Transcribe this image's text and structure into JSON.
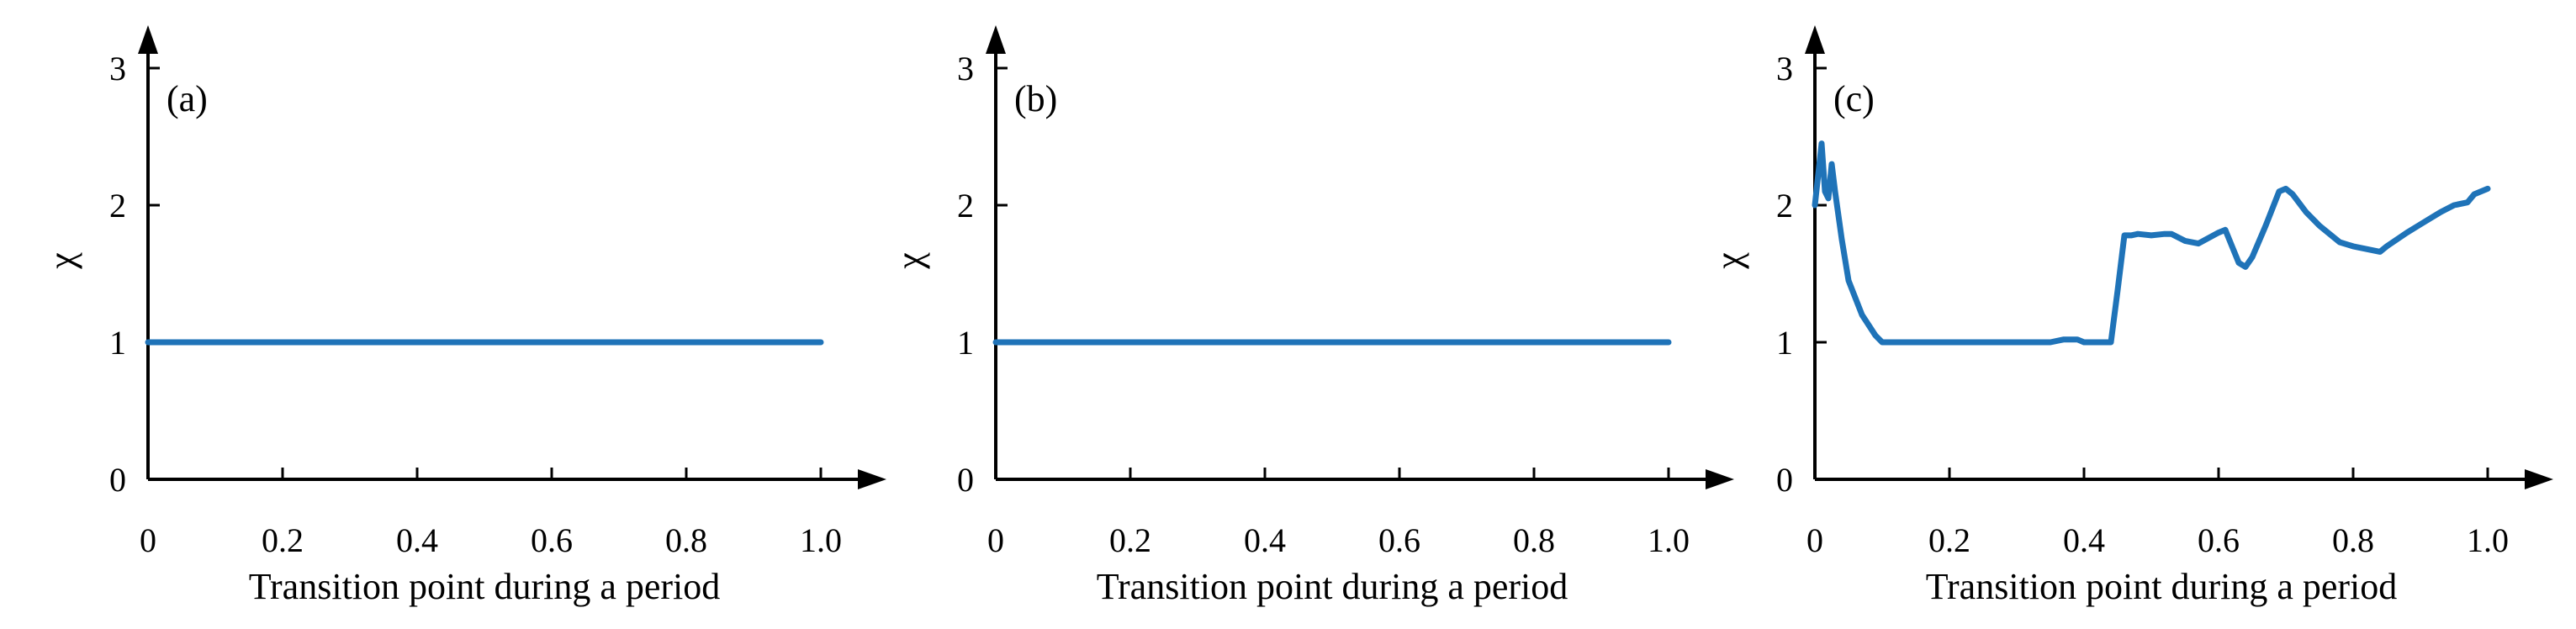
{
  "chart_data": [
    {
      "type": "line",
      "panel_label": "(a)",
      "xlabel": "Transition point during a period",
      "ylabel": "χ",
      "xlim": [
        0,
        1.0
      ],
      "ylim": [
        0,
        3
      ],
      "xticks": [
        "0",
        "0.2",
        "0.4",
        "0.6",
        "0.8",
        "1.0"
      ],
      "yticks": [
        "0",
        "1",
        "2",
        "3"
      ],
      "grid": false,
      "series_color": "#1f73b8",
      "x": [
        0,
        0.1,
        0.2,
        0.3,
        0.4,
        0.5,
        0.6,
        0.7,
        0.8,
        0.9,
        1.0
      ],
      "y": [
        1.0,
        1.0,
        1.0,
        1.0,
        1.0,
        1.0,
        1.0,
        1.0,
        1.0,
        1.0,
        1.0
      ]
    },
    {
      "type": "line",
      "panel_label": "(b)",
      "xlabel": "Transition point during a period",
      "ylabel": "χ",
      "xlim": [
        0,
        1.0
      ],
      "ylim": [
        0,
        3
      ],
      "xticks": [
        "0",
        "0.2",
        "0.4",
        "0.6",
        "0.8",
        "1.0"
      ],
      "yticks": [
        "0",
        "1",
        "2",
        "3"
      ],
      "grid": false,
      "series_color": "#1f73b8",
      "x": [
        0,
        0.1,
        0.2,
        0.3,
        0.4,
        0.5,
        0.6,
        0.7,
        0.8,
        0.9,
        1.0
      ],
      "y": [
        1.0,
        1.0,
        1.0,
        1.0,
        1.0,
        1.0,
        1.0,
        1.0,
        1.0,
        1.0,
        1.0
      ]
    },
    {
      "type": "line",
      "panel_label": "(c)",
      "xlabel": "Transition point during a period",
      "ylabel": "χ",
      "xlim": [
        0,
        1.0
      ],
      "ylim": [
        0,
        3
      ],
      "xticks": [
        "0",
        "0.2",
        "0.4",
        "0.6",
        "0.8",
        "1.0"
      ],
      "yticks": [
        "0",
        "1",
        "2",
        "3"
      ],
      "grid": false,
      "series_color": "#1f73b8",
      "x": [
        0,
        0.01,
        0.015,
        0.02,
        0.025,
        0.03,
        0.04,
        0.05,
        0.07,
        0.09,
        0.1,
        0.15,
        0.2,
        0.25,
        0.3,
        0.35,
        0.37,
        0.38,
        0.39,
        0.4,
        0.41,
        0.44,
        0.45,
        0.46,
        0.47,
        0.48,
        0.5,
        0.52,
        0.53,
        0.55,
        0.57,
        0.6,
        0.61,
        0.62,
        0.63,
        0.64,
        0.65,
        0.67,
        0.69,
        0.7,
        0.71,
        0.73,
        0.75,
        0.78,
        0.8,
        0.82,
        0.84,
        0.85,
        0.88,
        0.9,
        0.93,
        0.95,
        0.97,
        0.98,
        1.0
      ],
      "y": [
        2.0,
        2.45,
        2.1,
        2.05,
        2.3,
        2.1,
        1.75,
        1.45,
        1.2,
        1.05,
        1.0,
        1.0,
        1.0,
        1.0,
        1.0,
        1.0,
        1.02,
        1.02,
        1.02,
        1.0,
        1.0,
        1.0,
        1.38,
        1.78,
        1.78,
        1.79,
        1.78,
        1.79,
        1.79,
        1.74,
        1.72,
        1.8,
        1.82,
        1.7,
        1.58,
        1.55,
        1.62,
        1.85,
        2.1,
        2.12,
        2.08,
        1.95,
        1.85,
        1.73,
        1.7,
        1.68,
        1.66,
        1.7,
        1.8,
        1.86,
        1.95,
        2.0,
        2.02,
        2.08,
        2.12
      ]
    }
  ]
}
